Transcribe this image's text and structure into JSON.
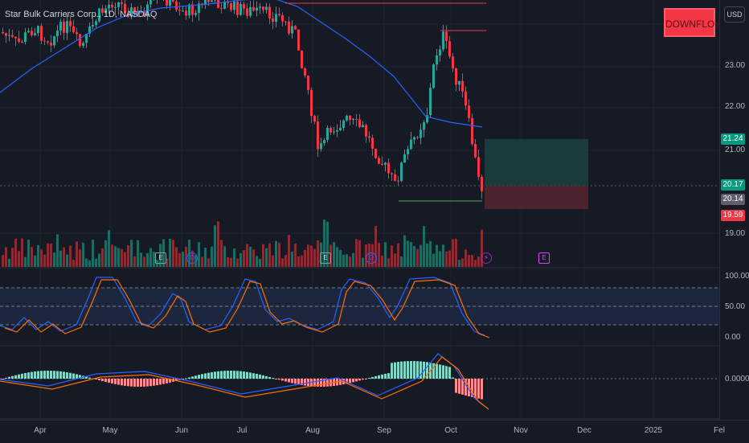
{
  "symbol_title": "Star Bulk Carriers Corp., 1D, NASDAQ",
  "currency_button": "USD",
  "signal_label": "DOWNFLOW",
  "colors": {
    "background": "#161a25",
    "up": "#26a69a",
    "down": "#f23645",
    "ma": "#2962ff",
    "stoch_k": "#2962ff",
    "stoch_d": "#ff6d00"
  },
  "price_axis": {
    "ticks": [
      "23.00",
      "22.00",
      "21.00",
      "19.00"
    ]
  },
  "price_tags": {
    "target": "21.24",
    "current": "20.17",
    "second": "20.14",
    "stop": "19.59"
  },
  "stoch_axis": {
    "ticks": [
      "100.00",
      "50.00",
      "0.00"
    ]
  },
  "macd_axis": {
    "ticks": [
      "0.0000"
    ]
  },
  "time_axis": {
    "ticks": [
      "Apr",
      "May",
      "Jun",
      "Jul",
      "Aug",
      "Sep",
      "Oct",
      "Nov",
      "Dec",
      "2025",
      "Fel"
    ]
  },
  "event_markers": [
    {
      "icon": "earnings-icon",
      "label": "E"
    },
    {
      "icon": "dividend-icon",
      "label": "D"
    },
    {
      "icon": "earnings-icon",
      "label": "E"
    },
    {
      "icon": "dividend-icon",
      "label": "D"
    },
    {
      "icon": "lightning-icon",
      "label": "⚡"
    },
    {
      "icon": "earnings-icon",
      "label": "E"
    }
  ],
  "chart_data": {
    "type": "candlestick",
    "indicators": [
      "volume",
      "moving-average",
      "stochastic",
      "macd"
    ],
    "price_levels": {
      "target": 21.24,
      "entry": 20.17,
      "stop": 19.59,
      "resistance": 23.6
    },
    "recent_closes": [
      23.4,
      23.1,
      22.6,
      22.0,
      21.5,
      20.9,
      20.4,
      20.17
    ]
  }
}
